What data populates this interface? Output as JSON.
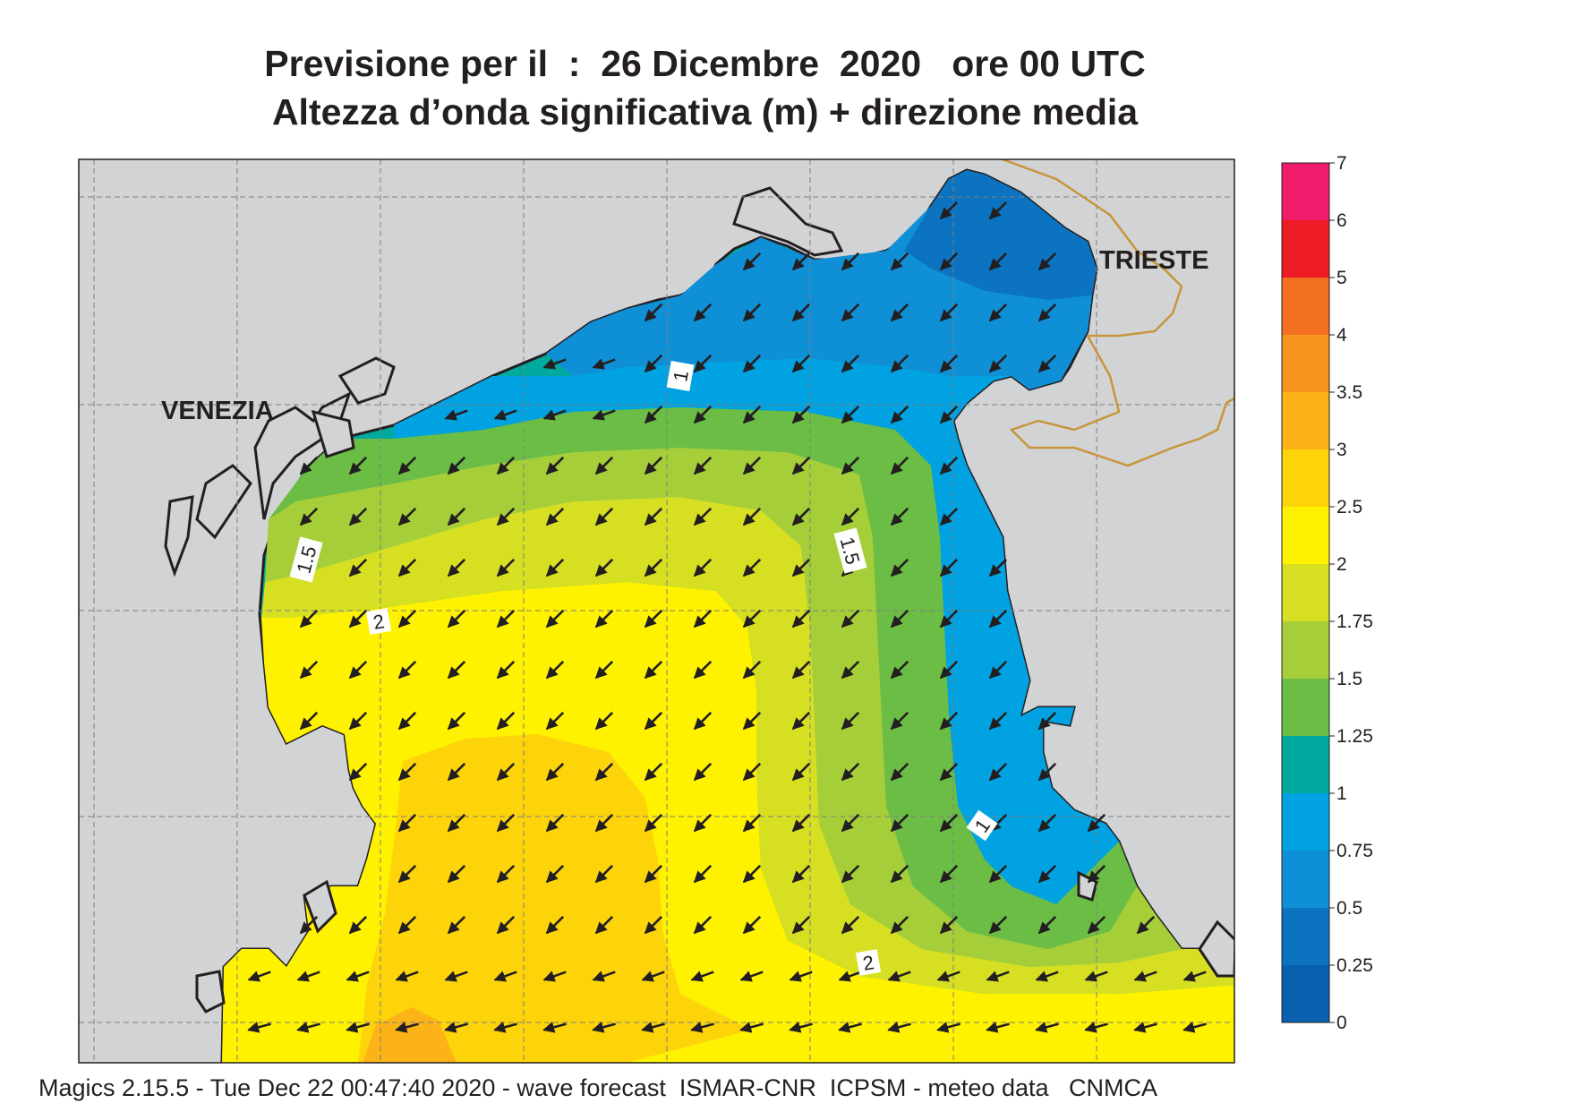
{
  "title_line1": "Previsione per il  :  26 Dicembre  2020   ore 00 UTC",
  "title_line2": "Altezza d’onda significativa (m) + direzione media",
  "labels": {
    "venezia": "VENEZIA",
    "trieste": "TRIESTE"
  },
  "contour_labels": [
    "1",
    "1.5",
    "1.5",
    "2",
    "1",
    "2"
  ],
  "legend": {
    "ticks": [
      "7",
      "6",
      "5",
      "4",
      "3.5",
      "3",
      "2.5",
      "2",
      "1.75",
      "1.5",
      "1.25",
      "1",
      "0.75",
      "0.5",
      "0.25",
      "0"
    ],
    "colors": [
      "#ee1c6a",
      "#ed1c24",
      "#f36f21",
      "#f7941d",
      "#fbb318",
      "#fdd40a",
      "#fff200",
      "#d7df23",
      "#a6ce39",
      "#6bbd45",
      "#00a99d",
      "#00a2e2",
      "#0f8fd6",
      "#0b73c0",
      "#0860ae"
    ]
  },
  "footer": "Magics 2.15.5 - Tue Dec 22 00:47:40 2020 - wave forecast  ISMAR-CNR  ICPSM - meteo data   CNMCA"
}
